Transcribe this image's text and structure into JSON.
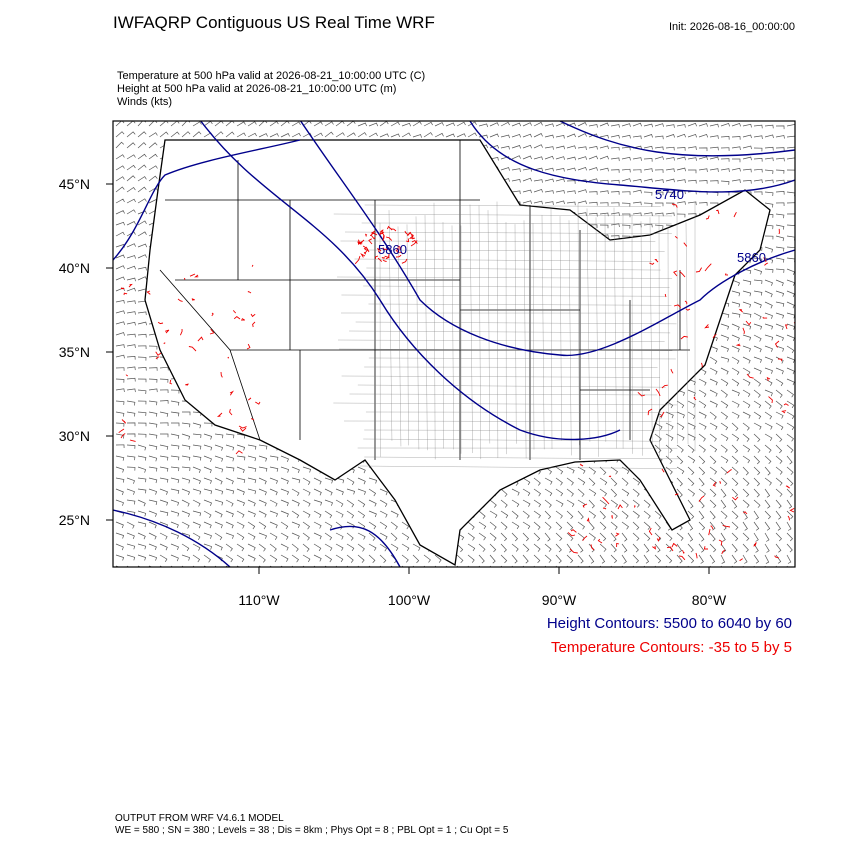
{
  "header": {
    "title": "IWFAQRP Contiguous US Real Time WRF",
    "init": "Init: 2026-08-16_00:00:00",
    "fields": [
      "Temperature at 500 hPa valid at 2026-08-21_10:00:00 UTC   (C)",
      "Height at 500 hPa valid at 2026-08-21_10:00:00 UTC   (m)",
      "Winds   (kts)"
    ]
  },
  "map": {
    "lat_labels": [
      "45°N",
      "40°N",
      "35°N",
      "30°N",
      "25°N"
    ],
    "lon_labels": [
      "110°W",
      "100°W",
      "90°W",
      "80°W"
    ],
    "contour_labels": [
      "5860",
      "5740",
      "5860"
    ]
  },
  "legend": {
    "height": "Height Contours: 5500 to 6040 by 60",
    "temperature": "Temperature Contours: -35 to 5 by 5"
  },
  "footer": {
    "model": "OUTPUT FROM WRF V4.6.1 MODEL",
    "settings": "WE = 580 ; SN = 380 ; Levels = 38 ; Dis = 8km ; Phys Opt = 8 ; PBL Opt = 1 ; Cu Opt = 5"
  }
}
